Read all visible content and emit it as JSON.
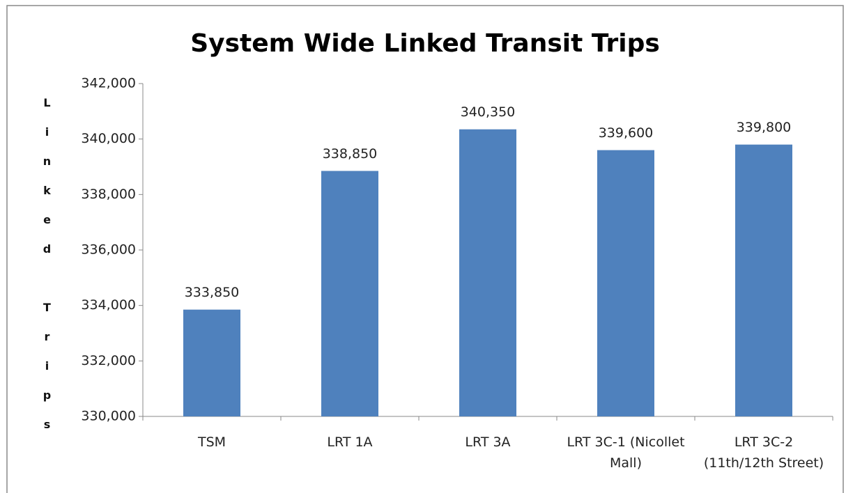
{
  "chart_data": {
    "type": "bar",
    "title": "System Wide Linked Transit  Trips",
    "y_label": "Linked Trips",
    "categories": [
      "TSM",
      "LRT 1A",
      "LRT 3A",
      "LRT 3C-1 (Nicollet Mall)",
      "LRT 3C-2 (11th/12th Street)"
    ],
    "values": [
      333850,
      338850,
      340350,
      339600,
      339800
    ],
    "value_labels": [
      "333,850",
      "338,850",
      "340,350",
      "339,600",
      "339,800"
    ],
    "color": "#4f81bd",
    "ylim": [
      330000,
      342000
    ],
    "yticks": [
      {
        "value": 330000,
        "label": "330,000"
      },
      {
        "value": 332000,
        "label": "332,000"
      },
      {
        "value": 334000,
        "label": "334,000"
      },
      {
        "value": 336000,
        "label": "336,000"
      },
      {
        "value": 338000,
        "label": "338,000"
      },
      {
        "value": 340000,
        "label": "340,000"
      },
      {
        "value": 342000,
        "label": "342,000"
      }
    ],
    "grid": false
  }
}
